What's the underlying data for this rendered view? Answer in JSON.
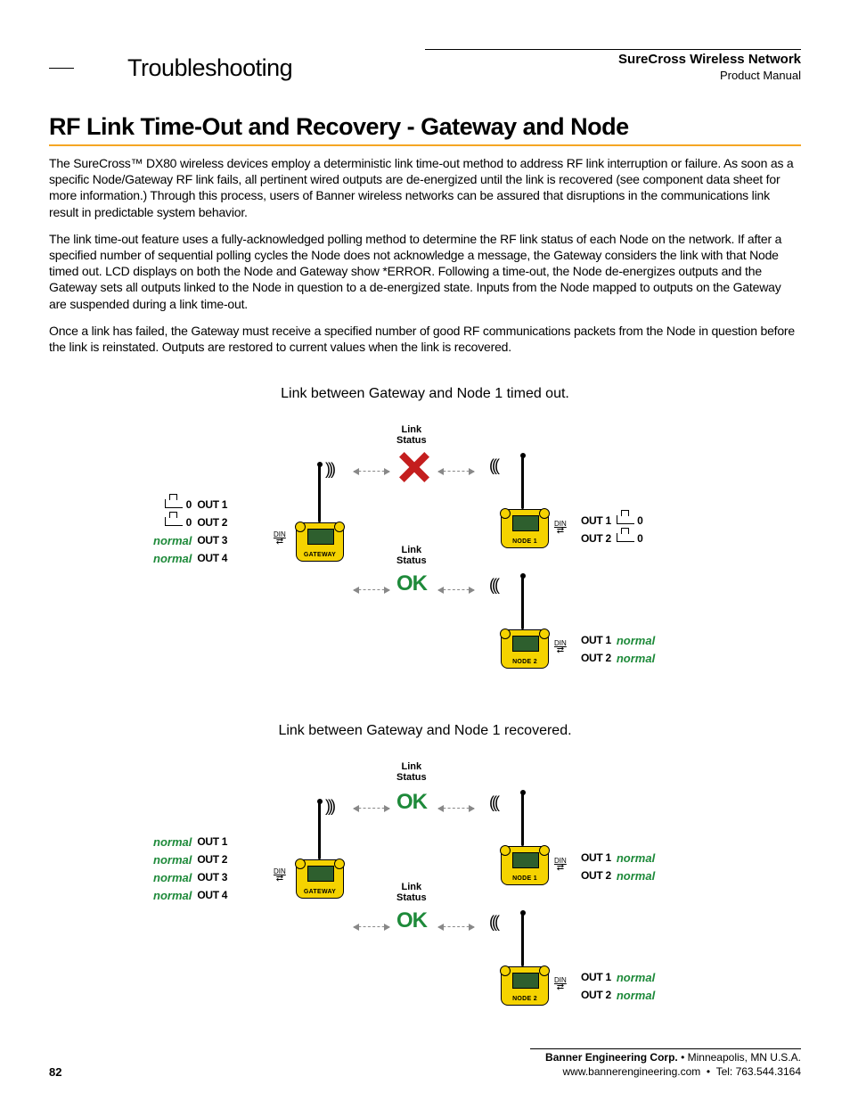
{
  "header": {
    "section": "Troubleshooting",
    "brand": "SureCross Wireless Network",
    "doctype": "Product Manual"
  },
  "title": "RF Link Time-Out and Recovery - Gateway and Node",
  "paras": [
    "The SureCross™ DX80 wireless devices employ a deterministic link time-out method to address RF link interruption or failure. As soon as a specific Node/Gateway RF link fails, all pertinent wired outputs are de-energized until the link is recovered (see component data sheet for more information.) Through this process, users of Banner wireless networks can be assured that disruptions in the communications link result in predictable system behavior.",
    "The link time-out feature uses a fully-acknowledged polling method to determine the RF link status of each Node on the network. If after a specified number of sequential polling cycles the Node does not acknowledge a message, the Gateway considers the link with that Node timed out. LCD displays on both the Node and Gateway show *ERROR. Following a time-out, the Node de-energizes outputs and the Gateway sets all outputs linked to the Node in question to a de-energized state. Inputs from the Node mapped to outputs on the Gateway are suspended during a link time-out.",
    "Once a link has failed, the Gateway must receive a specified number of good RF communications packets from the Node in question before the link is reinstated. Outputs are restored to current values when the link is recovered."
  ],
  "diag1": {
    "caption": "Link between Gateway and Node 1 timed out.",
    "link_status": "Link\nStatus",
    "ok": "OK",
    "gateway": "GATEWAY",
    "node1": "NODE 1",
    "node2": "NODE 2",
    "din": "DIN",
    "gw_outs": [
      {
        "label": "OUT 1",
        "state": "zero"
      },
      {
        "label": "OUT 2",
        "state": "zero"
      },
      {
        "label": "OUT 3",
        "state": "normal"
      },
      {
        "label": "OUT 4",
        "state": "normal"
      }
    ],
    "n1_outs": [
      {
        "label": "OUT 1",
        "state": "zero"
      },
      {
        "label": "OUT 2",
        "state": "zero"
      }
    ],
    "n2_outs": [
      {
        "label": "OUT 1",
        "state": "normal"
      },
      {
        "label": "OUT 2",
        "state": "normal"
      }
    ]
  },
  "diag2": {
    "caption": "Link between Gateway and Node 1 recovered.",
    "link_status": "Link\nStatus",
    "ok": "OK",
    "gateway": "GATEWAY",
    "node1": "NODE 1",
    "node2": "NODE 2",
    "din": "DIN",
    "gw_outs": [
      {
        "label": "OUT 1",
        "state": "normal"
      },
      {
        "label": "OUT 2",
        "state": "normal"
      },
      {
        "label": "OUT 3",
        "state": "normal"
      },
      {
        "label": "OUT 4",
        "state": "normal"
      }
    ],
    "n1_outs": [
      {
        "label": "OUT 1",
        "state": "normal"
      },
      {
        "label": "OUT 2",
        "state": "normal"
      }
    ],
    "n2_outs": [
      {
        "label": "OUT 1",
        "state": "normal"
      },
      {
        "label": "OUT 2",
        "state": "normal"
      }
    ]
  },
  "footer": {
    "company": "Banner Engineering Corp.",
    "loc": "Minneapolis, MN U.S.A.",
    "web": "www.bannerengineering.com",
    "tel": "Tel: 763.544.3164",
    "page": "82"
  },
  "labels": {
    "normal": "normal",
    "zero": "0"
  },
  "colors": {
    "accent_rule": "#f5a623",
    "device_fill": "#f5d300",
    "screen_fill": "#2e5f2e",
    "ok_green": "#1e8a3a",
    "fail_red": "#c41e1e",
    "dash_grey": "#888888"
  }
}
